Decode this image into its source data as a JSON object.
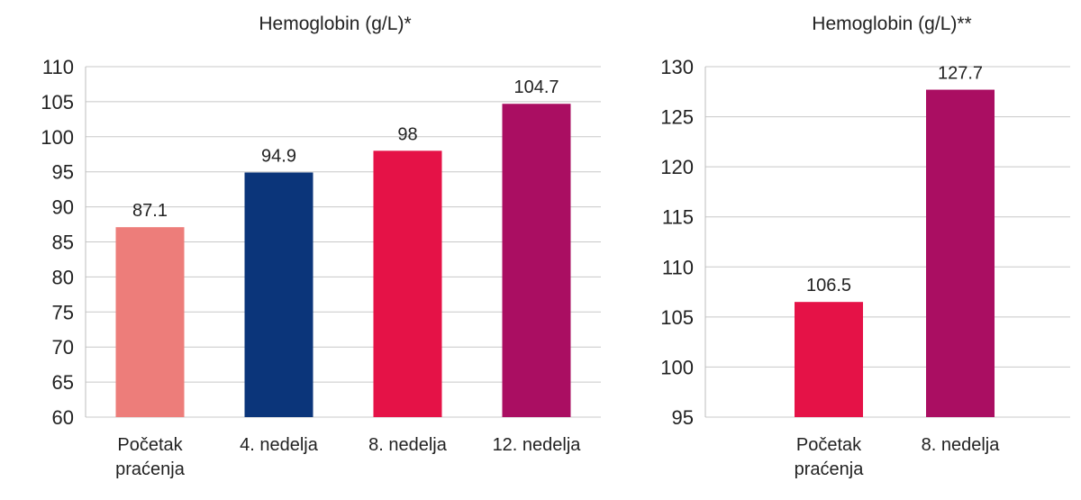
{
  "chart_data": [
    {
      "type": "bar",
      "title": "Hemoglobin (g/L)*",
      "categories": [
        [
          "Početak",
          "praćenja"
        ],
        [
          "4. nedelja"
        ],
        [
          "8. nedelja"
        ],
        [
          "12. nedelja"
        ]
      ],
      "values": [
        87.1,
        94.9,
        98,
        104.7
      ],
      "value_labels": [
        "87.1",
        "94.9",
        "98",
        "104.7"
      ],
      "colors": [
        "#ED7D7A",
        "#0B357A",
        "#E51247",
        "#AA0E62"
      ],
      "ylim": [
        60,
        110
      ],
      "yticks": [
        60,
        65,
        70,
        75,
        80,
        85,
        90,
        95,
        100,
        105,
        110
      ],
      "grid": true,
      "xlabel": "",
      "ylabel": ""
    },
    {
      "type": "bar",
      "title": "Hemoglobin (g/L)**",
      "categories": [
        [
          "Početak",
          "praćenja"
        ],
        [
          "8. nedelja"
        ]
      ],
      "values": [
        106.5,
        127.7
      ],
      "value_labels": [
        "106.5",
        "127.7"
      ],
      "colors": [
        "#E51247",
        "#AA0E62"
      ],
      "ylim": [
        95,
        130
      ],
      "yticks": [
        95,
        100,
        105,
        110,
        115,
        120,
        125,
        130
      ],
      "grid": true,
      "xlabel": "",
      "ylabel": ""
    }
  ]
}
